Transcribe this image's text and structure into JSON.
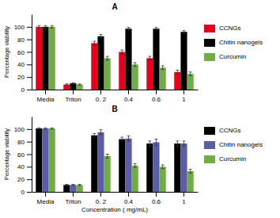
{
  "chart_data": [
    {
      "type": "bar",
      "title": "A",
      "categories": [
        "Media",
        "Triton",
        "0. 2",
        "0.4",
        "0.6",
        "1"
      ],
      "series": [
        {
          "name": "CCNGs",
          "color": "#e8001c",
          "values": [
            100,
            8,
            74,
            60,
            50,
            28
          ],
          "errors": [
            2,
            1,
            3,
            3,
            3,
            3
          ]
        },
        {
          "name": "Chitin nanogels",
          "color": "#000000",
          "values": [
            100,
            10,
            85,
            97,
            97,
            92
          ],
          "errors": [
            2,
            1,
            3,
            2,
            2,
            2
          ]
        },
        {
          "name": "Curcumin",
          "color": "#70ad47",
          "values": [
            100,
            8,
            50,
            40,
            35,
            25
          ],
          "errors": [
            2,
            1,
            3,
            3,
            3,
            3
          ]
        }
      ],
      "ylabel": "Percentage viability",
      "ylim": [
        0,
        120
      ],
      "yticks": [
        0,
        20,
        40,
        60,
        80,
        100
      ],
      "legend": "right"
    },
    {
      "type": "bar",
      "title": "B",
      "categories": [
        "Media",
        "Triton",
        "0. 2",
        "0.4",
        "0.6",
        "1"
      ],
      "series": [
        {
          "name": "CCNGs",
          "color": "#000000",
          "values": [
            101,
            11,
            90,
            84,
            77,
            77
          ],
          "errors": [
            1,
            1,
            3,
            3,
            4,
            4
          ]
        },
        {
          "name": "Chitin nanogels",
          "color": "#5b5ea6",
          "values": [
            101,
            11,
            95,
            85,
            79,
            77
          ],
          "errors": [
            1,
            1,
            4,
            4,
            5,
            4
          ]
        },
        {
          "name": "Curcumin",
          "color": "#70ad47",
          "values": [
            101,
            11,
            57,
            42,
            40,
            33
          ],
          "errors": [
            1,
            1,
            3,
            3,
            3,
            3
          ]
        }
      ],
      "ylabel": "Percentage viability",
      "xlabel": "Concentration ( mg/mL)",
      "ylim": [
        0,
        120
      ],
      "yticks": [
        0,
        20,
        40,
        60,
        80,
        100
      ],
      "legend": "right"
    }
  ]
}
